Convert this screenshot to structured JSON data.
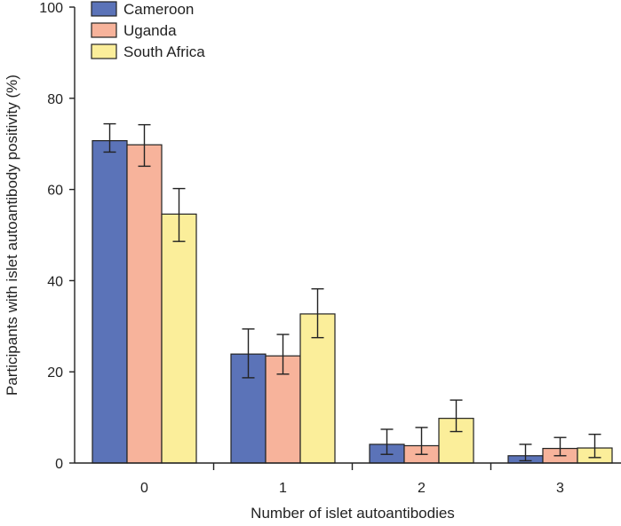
{
  "chart_data": {
    "type": "bar",
    "title": "",
    "xlabel": "Number of islet autoantibodies",
    "ylabel": "Participants with islet autoantibody positivity (%)",
    "categories": [
      "0",
      "1",
      "2",
      "3"
    ],
    "ylim": [
      0,
      100
    ],
    "yticks": [
      "0",
      "20",
      "40",
      "60",
      "80",
      "100"
    ],
    "grid": false,
    "legend_position": "top-left",
    "series": [
      {
        "name": "Cameroon",
        "color": "#5b73b8",
        "values": [
          70.7,
          23.9,
          4.1,
          1.6
        ],
        "err_low": [
          68.2,
          18.7,
          1.9,
          0.5
        ],
        "err_high": [
          74.4,
          29.4,
          7.4,
          4.1
        ]
      },
      {
        "name": "Uganda",
        "color": "#f7b39b",
        "values": [
          69.8,
          23.5,
          3.8,
          3.2
        ],
        "err_low": [
          65.1,
          19.5,
          1.9,
          1.6
        ],
        "err_high": [
          74.2,
          28.2,
          7.8,
          5.6
        ]
      },
      {
        "name": "South Africa",
        "color": "#fbee9a",
        "values": [
          54.6,
          32.7,
          9.8,
          3.3
        ],
        "err_low": [
          48.6,
          27.5,
          6.9,
          1.2
        ],
        "err_high": [
          60.2,
          38.2,
          13.8,
          6.3
        ]
      }
    ]
  }
}
